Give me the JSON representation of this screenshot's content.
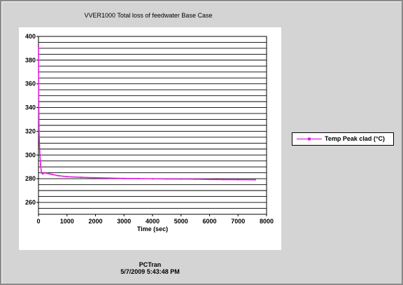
{
  "chart_data": {
    "type": "line",
    "title": "VVER1000 Total loss of feedwater Base Case",
    "xlabel": "Time (sec)",
    "ylabel": "",
    "xlim": [
      0,
      8000
    ],
    "ylim": [
      250,
      400
    ],
    "xticks": [
      0,
      1000,
      2000,
      3000,
      4000,
      5000,
      6000,
      7000,
      8000
    ],
    "yticks": [
      260,
      280,
      300,
      320,
      340,
      360,
      380,
      400
    ],
    "grid": "horizontal",
    "legend_position": "right",
    "series": [
      {
        "name": "Temp Peak clad (°C)",
        "color": "#e020e0",
        "x": [
          0,
          5,
          10,
          20,
          35,
          50,
          75,
          100,
          150,
          200,
          250,
          300,
          400,
          500,
          700,
          1000,
          1500,
          2000,
          2500,
          3000,
          3500,
          4000,
          4500,
          5000,
          5500,
          6000,
          6500,
          7000,
          7600
        ],
        "y": [
          392,
          370,
          345,
          320,
          308,
          300,
          292,
          285,
          284,
          285,
          285,
          284.5,
          284,
          283.5,
          282.5,
          281.7,
          281.2,
          280.8,
          280.5,
          280.2,
          280.1,
          279.9,
          279.8,
          279.7,
          279.6,
          279.4,
          279.3,
          279.2,
          279.1
        ]
      }
    ]
  },
  "legend": {
    "label": "Temp Peak clad (°C)"
  },
  "footer": {
    "app_name": "PCTran",
    "timestamp": "5/7/2009 5:43:48 PM"
  }
}
